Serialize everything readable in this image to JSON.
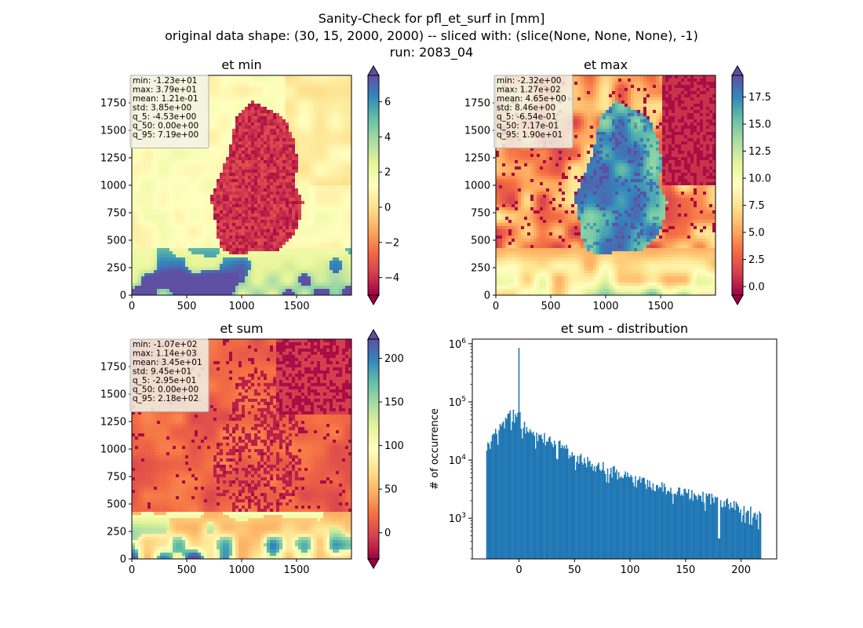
{
  "figure": {
    "suptitle_lines": [
      "Sanity-Check for pfl_et_surf in [mm]",
      "original data shape: (30, 15, 2000, 2000) -- sliced with: (slice(None, None, None), -1)",
      "run: 2083_04"
    ]
  },
  "chart_data": [
    {
      "type": "heatmap",
      "title": "et min",
      "colormap": "Spectral",
      "xlim": [
        0,
        2000
      ],
      "ylim": [
        0,
        2000
      ],
      "xticks": [
        0,
        500,
        1000,
        1500
      ],
      "yticks": [
        0,
        250,
        500,
        750,
        1000,
        1250,
        1500,
        1750
      ],
      "colorbar": {
        "vmin": -5,
        "vmax": 7.5,
        "ticks": [
          -4,
          -2,
          0,
          2,
          4,
          6
        ],
        "tick_labels": [
          "−4",
          "−2",
          "0",
          "2",
          "4",
          "6"
        ],
        "extend": "both"
      },
      "stats": [
        "min: -1.23e+01",
        "max: 3.79e+01",
        "mean: 1.21e-01",
        "std: 3.85e+00",
        "q_5: -4.53e+00",
        "q_50: 0.00e+00",
        "q_95: 7.19e+00"
      ]
    },
    {
      "type": "heatmap",
      "title": "et max",
      "colormap": "Spectral",
      "xlim": [
        0,
        2000
      ],
      "ylim": [
        0,
        2000
      ],
      "xticks": [
        0,
        500,
        1000,
        1500
      ],
      "yticks": [
        0,
        250,
        500,
        750,
        1000,
        1250,
        1500,
        1750
      ],
      "colorbar": {
        "vmin": -0.8,
        "vmax": 19.5,
        "ticks": [
          0,
          2.5,
          5,
          7.5,
          10,
          12.5,
          15,
          17.5
        ],
        "tick_labels": [
          "0.0",
          "2.5",
          "5.0",
          "7.5",
          "10.0",
          "12.5",
          "15.0",
          "17.5"
        ],
        "extend": "both"
      },
      "stats": [
        "min: -2.32e+00",
        "max: 1.27e+02",
        "mean: 4.65e+00",
        "std: 8.46e+00",
        "q_5: -6.54e-01",
        "q_50: 7.17e-01",
        "q_95: 1.90e+01"
      ]
    },
    {
      "type": "heatmap",
      "title": "et sum",
      "colormap": "Spectral",
      "xlim": [
        0,
        2000
      ],
      "ylim": [
        0,
        2000
      ],
      "xticks": [
        0,
        500,
        1000,
        1500
      ],
      "yticks": [
        0,
        250,
        500,
        750,
        1000,
        1250,
        1500,
        1750
      ],
      "colorbar": {
        "vmin": -30,
        "vmax": 222,
        "ticks": [
          0,
          50,
          100,
          150,
          200
        ],
        "tick_labels": [
          "0",
          "50",
          "100",
          "150",
          "200"
        ],
        "extend": "both"
      },
      "stats": [
        "min: -1.07e+02",
        "max: 1.14e+03",
        "mean: 3.45e+01",
        "std: 9.45e+01",
        "q_5: -2.95e+01",
        "q_50: 0.00e+00",
        "q_95: 2.18e+02"
      ]
    },
    {
      "type": "bar",
      "title": "et sum - distribution",
      "ylabel": "# of occurrence",
      "yscale": "log",
      "color": "#1f77b4",
      "xlim": [
        -42,
        232
      ],
      "ylim": [
        200,
        1200000
      ],
      "xticks": [
        0,
        50,
        100,
        150,
        200
      ],
      "yticks": [
        1000,
        10000,
        100000,
        1000000
      ],
      "ytick_labels": [
        {
          "base": "10",
          "exp": "3"
        },
        {
          "base": "10",
          "exp": "4"
        },
        {
          "base": "10",
          "exp": "5"
        },
        {
          "base": "10",
          "exp": "6"
        }
      ],
      "bin_range": [
        -29.5,
        218
      ],
      "envelope": [
        [
          -29.5,
          18000
        ],
        [
          -25,
          22000
        ],
        [
          -20,
          32000
        ],
        [
          -15,
          42000
        ],
        [
          -10,
          58000
        ],
        [
          -5,
          62000
        ],
        [
          -1,
          55000
        ],
        [
          0,
          850000
        ],
        [
          1,
          48000
        ],
        [
          5,
          38000
        ],
        [
          10,
          32000
        ],
        [
          20,
          26000
        ],
        [
          30,
          21000
        ],
        [
          40,
          17000
        ],
        [
          50,
          12500
        ],
        [
          60,
          10000
        ],
        [
          70,
          8500
        ],
        [
          80,
          7500
        ],
        [
          90,
          6000
        ],
        [
          100,
          5000
        ],
        [
          110,
          4500
        ],
        [
          120,
          4000
        ],
        [
          130,
          3500
        ],
        [
          140,
          3200
        ],
        [
          150,
          2900
        ],
        [
          160,
          2600
        ],
        [
          170,
          2400
        ],
        [
          180,
          2000
        ],
        [
          190,
          1800
        ],
        [
          200,
          1600
        ],
        [
          210,
          1400
        ],
        [
          218,
          1100
        ]
      ]
    }
  ]
}
